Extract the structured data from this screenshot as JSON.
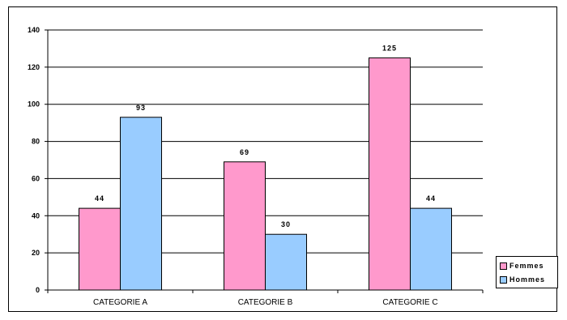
{
  "chart_data": {
    "type": "bar",
    "title": "",
    "xlabel": "",
    "ylabel": "",
    "categories": [
      "CATEGORIE A",
      "CATEGORIE B",
      "CATEGORIE C"
    ],
    "series": [
      {
        "name": "Femmes",
        "values": [
          44,
          69,
          125
        ],
        "color": "#ff99cc",
        "value_labels": [
          "44",
          "69",
          "125"
        ]
      },
      {
        "name": "Hommes",
        "values": [
          93,
          30,
          44
        ],
        "color": "#99ccff",
        "value_labels": [
          "93",
          "30",
          "44"
        ]
      }
    ],
    "ylim": [
      0,
      140
    ],
    "yticks": [
      "0",
      "20",
      "40",
      "60",
      "80",
      "100",
      "120",
      "140"
    ],
    "grid": true,
    "legend_position": "bottom-right",
    "legend_labels": [
      "Femmes",
      "Hommes"
    ]
  }
}
